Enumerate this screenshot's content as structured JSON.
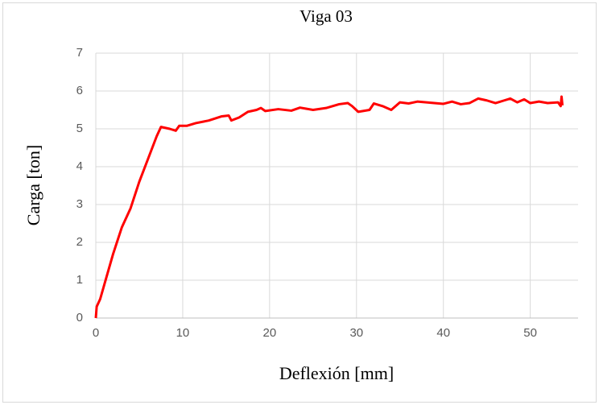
{
  "chart_data": {
    "type": "line",
    "title": "Viga 03",
    "x_label": "Deflexión [mm]",
    "y_label": "Carga [ton]",
    "xlim": [
      0,
      55.5
    ],
    "ylim": [
      0,
      7
    ],
    "xticks": [
      0,
      10,
      20,
      30,
      40,
      50
    ],
    "yticks": [
      0,
      1,
      2,
      3,
      4,
      5,
      6,
      7
    ],
    "grid": true,
    "series": [
      {
        "name": "Viga 03",
        "color": "#ff0000",
        "x": [
          0,
          0.1,
          0.5,
          1,
          2,
          3,
          4,
          5,
          6,
          7,
          7.5,
          8.5,
          9.2,
          9.6,
          10.5,
          11.5,
          13,
          14.5,
          15.3,
          15.6,
          16.5,
          17.5,
          18.5,
          19,
          19.5,
          21,
          22.5,
          23.5,
          25,
          26.5,
          28,
          29,
          29.5,
          30.2,
          31.5,
          32,
          33,
          34,
          35,
          36,
          37,
          40,
          41,
          42,
          43,
          44,
          45,
          46,
          47,
          47.7,
          48.5,
          49.3,
          50,
          51,
          52,
          53.2,
          53.5,
          53.6,
          53.7
        ],
        "values": [
          0,
          0.3,
          0.5,
          0.9,
          1.7,
          2.4,
          2.9,
          3.6,
          4.2,
          4.8,
          5.05,
          5.0,
          4.95,
          5.08,
          5.08,
          5.15,
          5.22,
          5.33,
          5.35,
          5.22,
          5.3,
          5.45,
          5.5,
          5.55,
          5.47,
          5.52,
          5.48,
          5.56,
          5.5,
          5.55,
          5.65,
          5.68,
          5.6,
          5.45,
          5.5,
          5.67,
          5.6,
          5.5,
          5.7,
          5.67,
          5.72,
          5.66,
          5.72,
          5.65,
          5.68,
          5.8,
          5.75,
          5.68,
          5.75,
          5.8,
          5.7,
          5.78,
          5.68,
          5.72,
          5.68,
          5.7,
          5.6,
          5.85,
          5.62
        ]
      }
    ]
  }
}
